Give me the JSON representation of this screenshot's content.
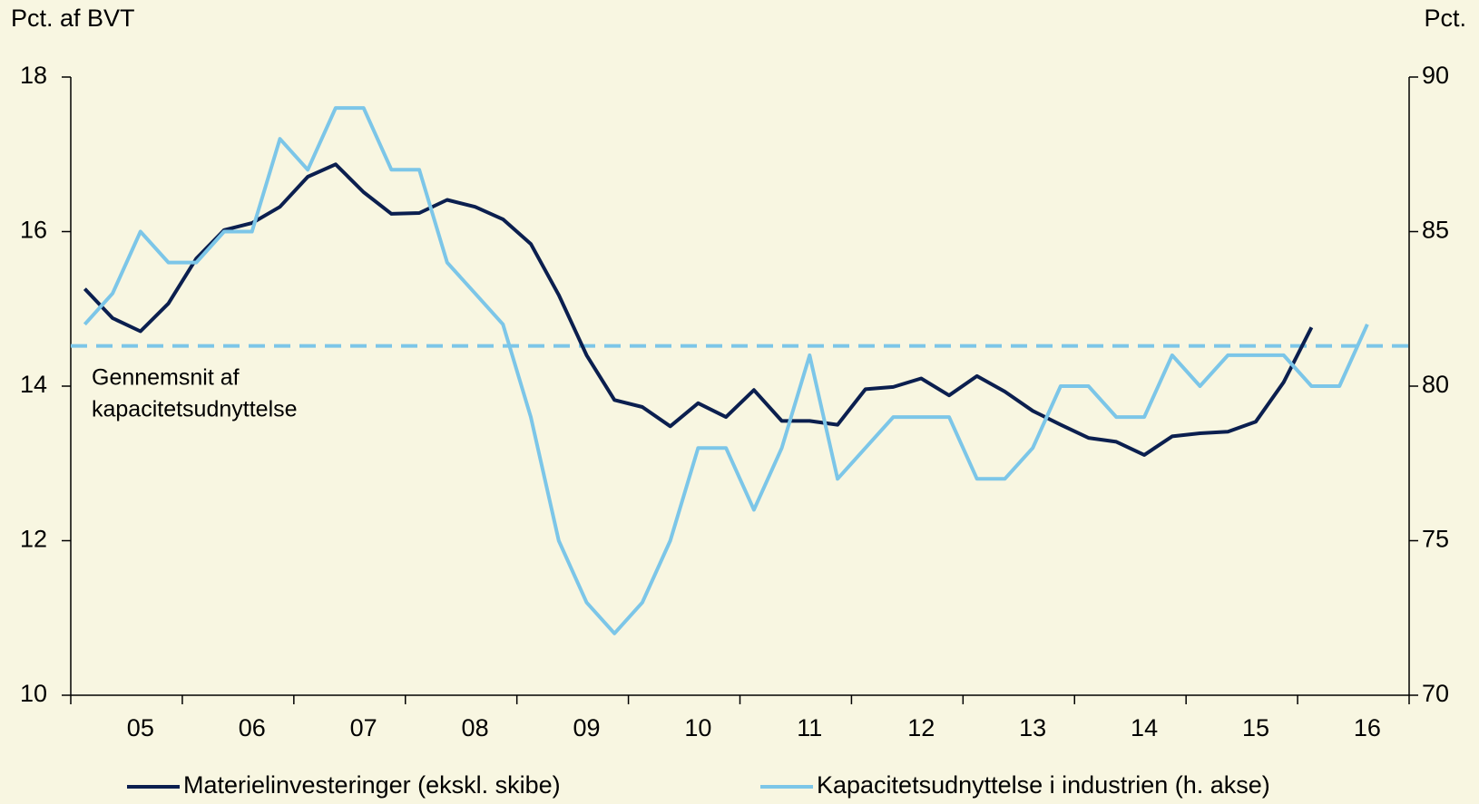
{
  "chart_data": {
    "type": "line",
    "y_label": "Pct. af BVT",
    "y2_label": "Pct.",
    "categories": [
      null,
      null,
      "05",
      null,
      null,
      null,
      "06",
      null,
      null,
      null,
      "07",
      null,
      null,
      null,
      "08",
      null,
      null,
      null,
      "09",
      null,
      null,
      null,
      "10",
      null,
      null,
      null,
      "11",
      null,
      null,
      null,
      "12",
      null,
      null,
      null,
      "13",
      null,
      null,
      null,
      "14",
      null,
      null,
      null,
      "15",
      null,
      null,
      null,
      "16",
      null
    ],
    "series": [
      {
        "name": "Materielinvesteringer (ekskl. skibe)",
        "color": "#0b1f4f",
        "axis": "y",
        "values": [
          15.26,
          14.88,
          14.71,
          15.07,
          15.65,
          16.02,
          16.11,
          16.32,
          16.71,
          16.87,
          16.51,
          16.23,
          16.24,
          16.41,
          16.32,
          16.16,
          15.84,
          15.18,
          14.4,
          13.82,
          13.73,
          13.48,
          13.78,
          13.6,
          13.95,
          13.55,
          13.55,
          13.5,
          13.96,
          13.99,
          14.1,
          13.88,
          14.13,
          13.93,
          13.68,
          13.5,
          13.33,
          13.28,
          13.11,
          13.35,
          13.39,
          13.41,
          13.54,
          14.05,
          14.76,
          null,
          null,
          null
        ]
      },
      {
        "name": "Kapacitetsudnyttelse i industrien (h. akse)",
        "color": "#7cc6e8",
        "axis": "y2",
        "values": [
          82,
          83,
          85,
          84,
          84,
          85,
          85,
          88,
          87,
          89,
          89,
          87,
          87,
          84,
          83,
          82,
          79,
          75,
          73,
          72,
          73,
          75,
          78,
          78,
          76,
          78,
          81,
          77,
          78,
          79,
          79,
          79,
          77,
          77,
          78,
          80,
          80,
          79,
          79,
          81,
          80,
          81,
          81,
          81,
          80,
          80,
          82,
          null
        ]
      }
    ],
    "average": {
      "value": 81.3,
      "axis": "y2",
      "color": "#7cc6e8",
      "label": [
        "Gennemsnit af",
        "kapacitetsudnyttelse"
      ]
    },
    "ylim": [
      10,
      18
    ],
    "yticks": [
      10,
      12,
      14,
      16,
      18
    ],
    "y2lim": [
      70,
      90
    ],
    "y2ticks": [
      70,
      75,
      80,
      85,
      90
    ],
    "background": "#f8f6e1"
  }
}
